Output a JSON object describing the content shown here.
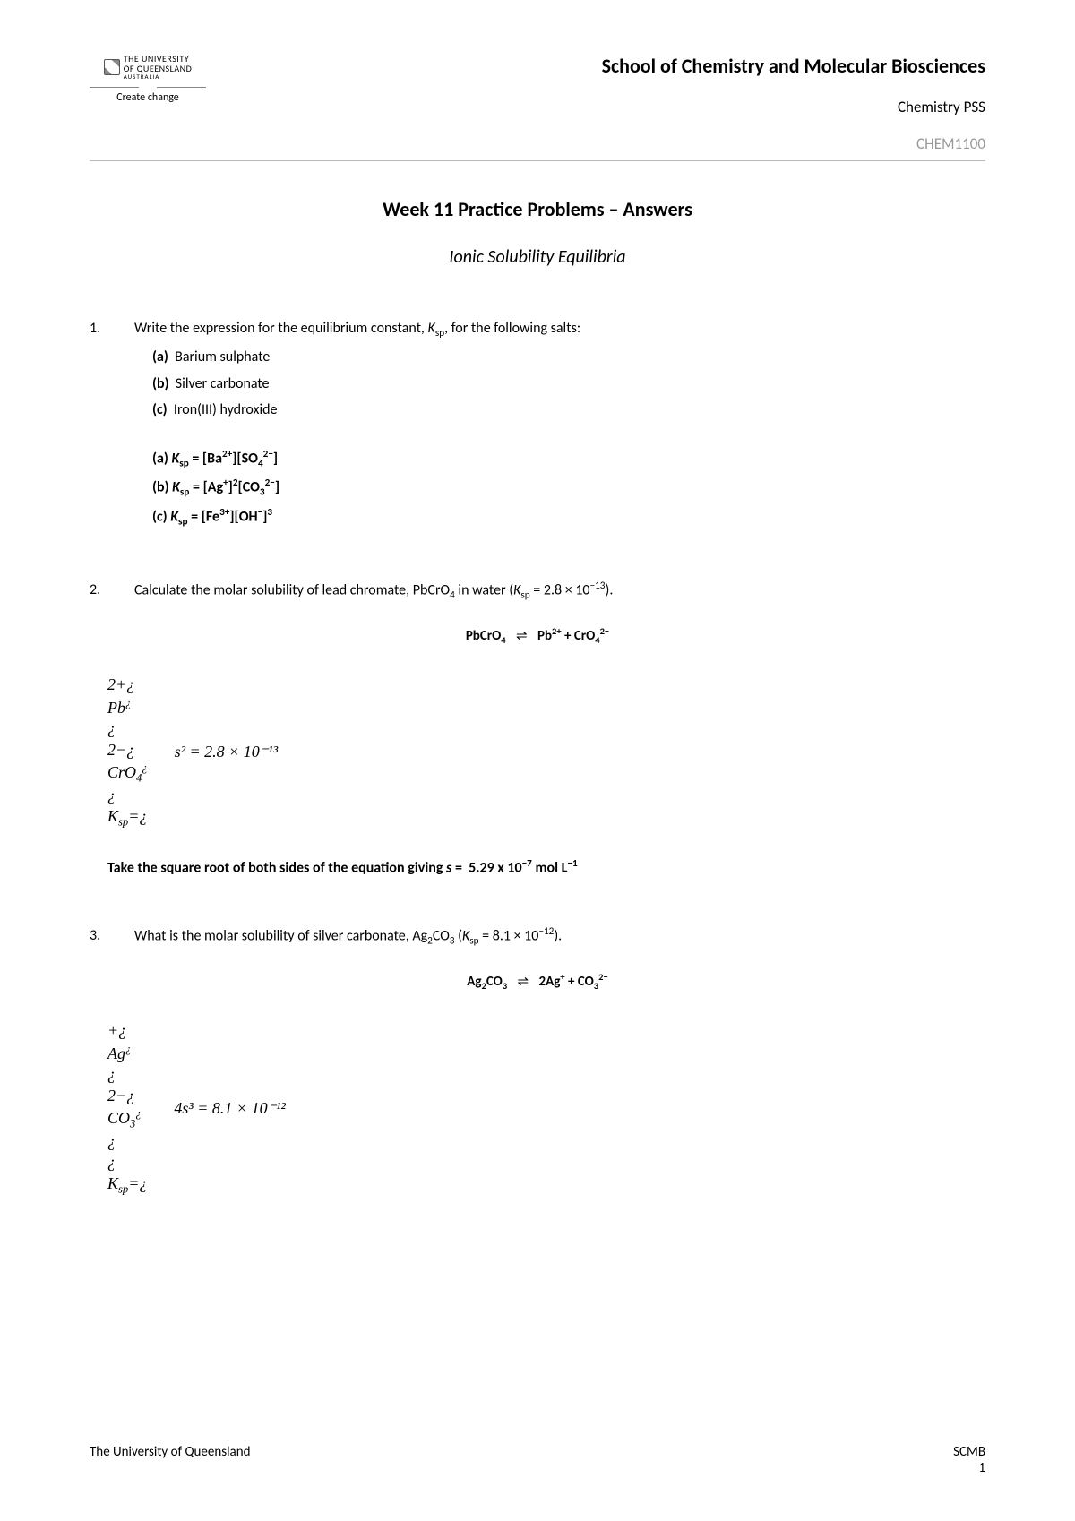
{
  "header": {
    "uni_line1": "THE UNIVERSITY",
    "uni_line2": "OF QUEENSLAND",
    "uni_line3": "AUSTRALIA",
    "tagline": "Create change",
    "school": "School of Chemistry and Molecular Biosciences",
    "subtitle": "Chemistry PSS",
    "course_code": "CHEM1100"
  },
  "title": "Week 11 Practice Problems – Answers",
  "subtitle": "Ionic Solubility Equilibria",
  "q1": {
    "num": "1.",
    "prompt_pre": "Write the expression for the equilibrium constant, ",
    "prompt_post": " for the following salts:",
    "a_label": "(a)",
    "a_text": "Barium sulphate",
    "b_label": "(b)",
    "b_text": "Silver carbonate",
    "c_label": "(c)",
    "c_text": "Iron(III) hydroxide"
  },
  "q2": {
    "num": "2.",
    "prompt": "Calculate the molar solubility of lead chromate, PbCrO",
    "ksp_val": "2.8 × 10",
    "ksp_exp": "−13",
    "eq_left": "PbCrO",
    "work_eq": "s² = 2.8 × 10⁻¹³",
    "conclusion_pre": "Take the square root of both sides of the equation giving ",
    "conclusion_val": "s =  5.29 x 10⁻⁷ mol L⁻¹"
  },
  "q3": {
    "num": "3.",
    "prompt_pre": "What is the molar solubility of silver carbonate, Ag",
    "ksp_val": "8.1 × 10",
    "ksp_exp": "−12",
    "work_eq": "4s³ = 8.1 × 10⁻¹²"
  },
  "footer": {
    "left": "The University of Queensland",
    "right1": "SCMB",
    "right2": "1"
  }
}
